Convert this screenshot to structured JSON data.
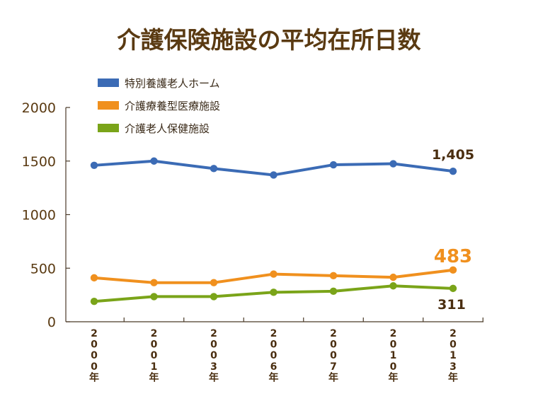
{
  "chart_data": {
    "type": "line",
    "title": "介護保険施設の平均在所日数",
    "xlabel": "",
    "ylabel": "",
    "ylim": [
      0,
      2000
    ],
    "yticks": [
      0,
      500,
      1000,
      1500,
      2000
    ],
    "ytick_labels": [
      "0",
      "500",
      "1000",
      "1500",
      "2000"
    ],
    "categories": [
      "2000年",
      "2001年",
      "2003年",
      "2006年",
      "2007年",
      "2010年",
      "2013年"
    ],
    "grid": false,
    "legend_position": "top-left",
    "series": [
      {
        "name": "特別養護老人ホーム",
        "color": "#3b6bb5",
        "values": [
          1460,
          1500,
          1430,
          1370,
          1465,
          1475,
          1405
        ],
        "end_label": "1,405",
        "end_label_color": "#4a2e10"
      },
      {
        "name": "介護療養型医療施設",
        "color": "#f0901e",
        "values": [
          410,
          365,
          365,
          445,
          430,
          415,
          483
        ],
        "end_label": "483",
        "end_label_color": "#f0901e"
      },
      {
        "name": "介護老人保健施設",
        "color": "#7aa419",
        "values": [
          190,
          235,
          235,
          275,
          285,
          335,
          311
        ],
        "end_label": "311",
        "end_label_color": "#4a2e10"
      }
    ]
  }
}
